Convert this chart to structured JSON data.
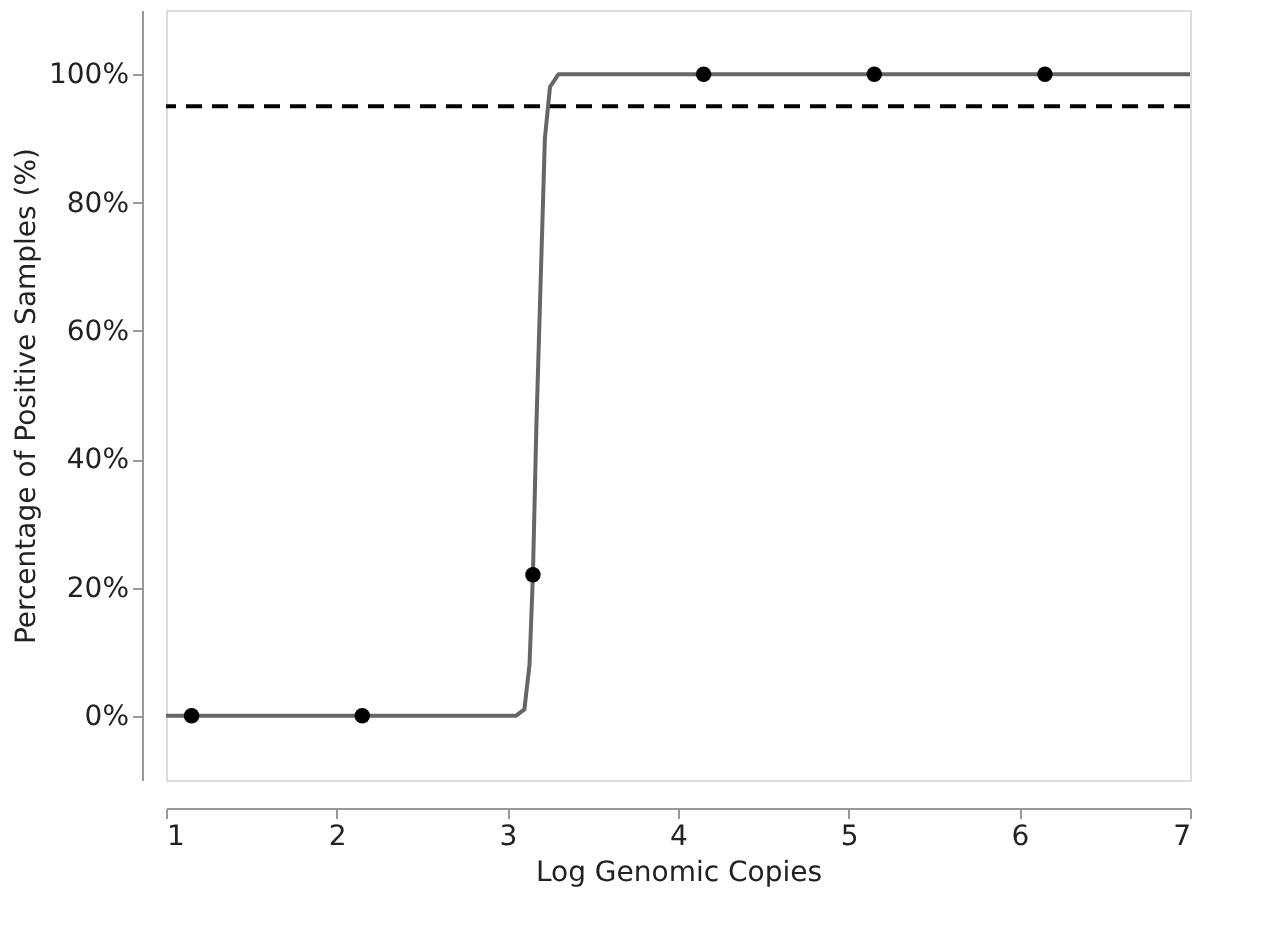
{
  "chart_data": {
    "type": "scatter",
    "xlabel": "Log Genomic Copies",
    "ylabel": "Percentage of Positive Samples (%)",
    "xlim": [
      1,
      7
    ],
    "xticks": [
      1,
      2,
      3,
      4,
      5,
      6,
      7
    ],
    "ylim": [
      -10,
      110
    ],
    "yticks": [
      {
        "value": 0,
        "label": "0%"
      },
      {
        "value": 20,
        "label": "20%"
      },
      {
        "value": 40,
        "label": "40%"
      },
      {
        "value": 60,
        "label": "60%"
      },
      {
        "value": 80,
        "label": "80%"
      },
      {
        "value": 100,
        "label": "100%"
      }
    ],
    "grid": false,
    "series": [
      {
        "type": "line",
        "color": "#666666",
        "line_style": "solid",
        "marker": "none",
        "x": [
          1,
          3.05,
          3.1,
          3.13,
          3.15,
          3.17,
          3.2,
          3.22,
          3.25,
          3.3,
          7
        ],
        "values": [
          0,
          0,
          1,
          8,
          22,
          45,
          72,
          90,
          98,
          100,
          100
        ]
      },
      {
        "color": "#000000",
        "marker": "circle",
        "x": [
          1.15,
          2.15,
          3.15,
          4.15,
          5.15,
          6.15
        ],
        "values": [
          0,
          0,
          22,
          100,
          100,
          100
        ]
      }
    ],
    "ref_lines": [
      {
        "axis": "y",
        "value": 95,
        "line_style": "dashed",
        "color": "#000000"
      }
    ]
  }
}
